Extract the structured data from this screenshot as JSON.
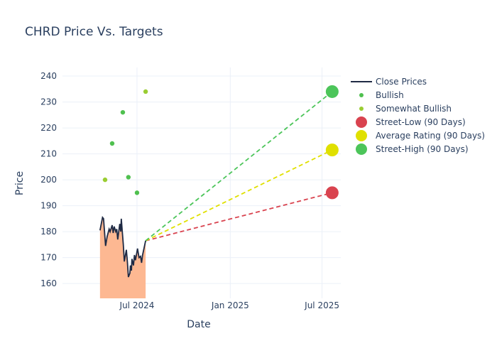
{
  "chart_data": {
    "type": "line",
    "title": "CHRD Price Vs. Targets",
    "xlabel": "Date",
    "ylabel": "Price",
    "ylim": [
      154.3,
      243.3
    ],
    "xlim": [
      "2024-02-05",
      "2025-08-07"
    ],
    "grid": true,
    "legend_placement": "right",
    "yticks": [
      160,
      170,
      180,
      190,
      200,
      210,
      220,
      230,
      240
    ],
    "xticks": [
      {
        "date": "2024-07-01",
        "label": "Jul 2024"
      },
      {
        "date": "2025-01-01",
        "label": "Jan 2025"
      },
      {
        "date": "2025-07-01",
        "label": "Jul 2025"
      }
    ],
    "close_prices": {
      "name": "Close Prices",
      "color": "#1f2a44",
      "fill_color": "#fdb892",
      "points": [
        [
          "2024-04-19",
          180.5
        ],
        [
          "2024-04-24",
          185.5
        ],
        [
          "2024-04-26",
          185
        ],
        [
          "2024-04-30",
          174.5
        ],
        [
          "2024-05-03",
          178
        ],
        [
          "2024-05-07",
          181
        ],
        [
          "2024-05-09",
          180
        ],
        [
          "2024-05-13",
          182.5
        ],
        [
          "2024-05-15",
          179.5
        ],
        [
          "2024-05-17",
          182
        ],
        [
          "2024-05-20",
          180
        ],
        [
          "2024-05-22",
          181
        ],
        [
          "2024-05-24",
          177
        ],
        [
          "2024-05-28",
          183
        ],
        [
          "2024-05-30",
          180
        ],
        [
          "2024-05-31",
          185
        ],
        [
          "2024-06-04",
          175
        ],
        [
          "2024-06-06",
          168.5
        ],
        [
          "2024-06-10",
          173
        ],
        [
          "2024-06-12",
          168.5
        ],
        [
          "2024-06-14",
          162.5
        ],
        [
          "2024-06-17",
          164
        ],
        [
          "2024-06-18",
          167
        ],
        [
          "2024-06-20",
          165
        ],
        [
          "2024-06-21",
          169.5
        ],
        [
          "2024-06-24",
          167
        ],
        [
          "2024-06-26",
          171
        ],
        [
          "2024-06-28",
          169
        ],
        [
          "2024-07-02",
          173.5
        ],
        [
          "2024-07-05",
          170
        ],
        [
          "2024-07-08",
          170.5
        ],
        [
          "2024-07-10",
          168
        ],
        [
          "2024-07-12",
          171
        ],
        [
          "2024-07-18",
          176.5
        ]
      ]
    },
    "ratings": [
      {
        "name": "Bullish",
        "color": "#4fc04f",
        "points": [
          [
            "2024-05-13",
            214
          ],
          [
            "2024-06-03",
            226
          ],
          [
            "2024-06-14",
            201
          ],
          [
            "2024-07-01",
            195
          ]
        ]
      },
      {
        "name": "Somewhat Bullish",
        "color": "#9acd32",
        "points": [
          [
            "2024-04-29",
            200
          ],
          [
            "2024-07-18",
            234
          ]
        ]
      }
    ],
    "targets": {
      "start": [
        "2024-07-18",
        176.5
      ],
      "end_date": "2025-07-21",
      "series": [
        {
          "name": "Street-Low (90 Days)",
          "color": "#d9434f",
          "value": 195
        },
        {
          "name": "Average Rating (90 Days)",
          "color": "#e0e000",
          "value": 211.5
        },
        {
          "name": "Street-High (90 Days)",
          "color": "#4cc55a",
          "value": 234
        }
      ]
    }
  }
}
